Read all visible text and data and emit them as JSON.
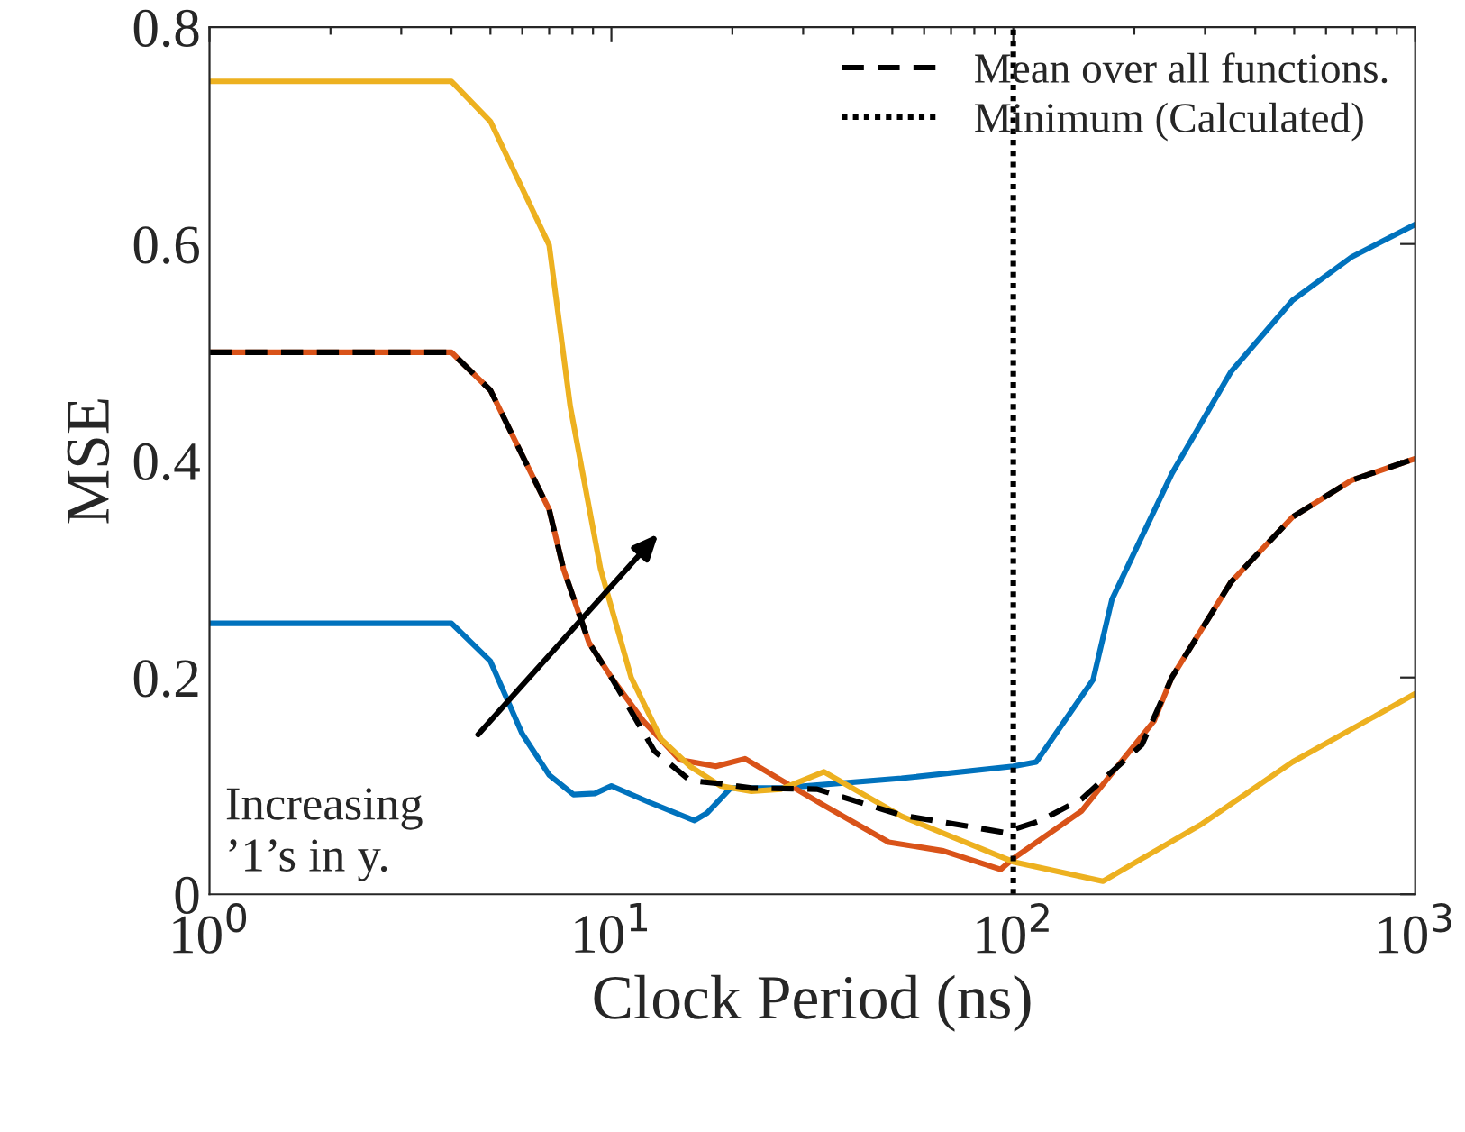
{
  "chart_data": {
    "type": "line",
    "xlabel": "Clock Period (ns)",
    "ylabel": "MSE",
    "log": "x",
    "xlim": [
      1,
      1000
    ],
    "xticks": [
      {
        "value": 1,
        "label": "10$^{0}$"
      },
      {
        "value": 10,
        "label": "10$^{1}$"
      },
      {
        "value": 100,
        "label": "10$^{2}$"
      },
      {
        "value": 1000,
        "label": "10$^{3}$"
      }
    ],
    "ylim": [
      0,
      0.8
    ],
    "yticks": [
      0,
      0.2,
      0.4,
      0.6,
      0.8
    ],
    "grid": false,
    "legend": "top right",
    "line_style": "solid",
    "marker": "none",
    "series": [
      {
        "color": "#0072bd",
        "x": [
          1,
          4,
          5,
          6,
          7,
          8.05,
          9.1,
          10,
          12.4,
          16.1,
          17.3,
          19.8,
          26.4,
          52.7,
          100,
          114,
          158,
          176,
          248,
          348,
          495,
          695,
          1000
        ],
        "values": [
          0.25,
          0.25,
          0.215,
          0.148,
          0.11,
          0.092,
          0.093,
          0.1,
          0.085,
          0.068,
          0.075,
          0.098,
          0.098,
          0.107,
          0.118,
          0.122,
          0.198,
          0.272,
          0.388,
          0.482,
          0.548,
          0.588,
          0.618
        ]
      },
      {
        "color": "#d95319",
        "x": [
          1,
          4,
          5,
          6,
          7,
          7.6,
          8.8,
          10,
          12,
          14.8,
          18.2,
          21.5,
          33.8,
          49,
          67,
          93,
          100,
          148,
          224,
          248,
          348,
          495,
          695,
          1000
        ],
        "values": [
          0.5,
          0.5,
          0.465,
          0.405,
          0.355,
          0.3,
          0.232,
          0.2,
          0.16,
          0.124,
          0.118,
          0.125,
          0.082,
          0.048,
          0.04,
          0.023,
          0.033,
          0.077,
          0.16,
          0.2,
          0.288,
          0.348,
          0.382,
          0.402
        ]
      },
      {
        "color": "#edb120",
        "x": [
          1,
          4,
          5,
          7,
          7.9,
          9.4,
          11.2,
          13.3,
          15.7,
          18.7,
          22.3,
          26.4,
          33.8,
          52.7,
          100,
          167,
          295,
          495,
          1000
        ],
        "values": [
          0.75,
          0.75,
          0.713,
          0.599,
          0.45,
          0.3,
          0.2,
          0.143,
          0.118,
          0.1,
          0.095,
          0.097,
          0.113,
          0.072,
          0.03,
          0.012,
          0.065,
          0.122,
          0.185
        ]
      },
      {
        "name": "Mean over all functions.",
        "color": "#000000",
        "line_style": "dashed",
        "x": [
          1,
          4,
          5,
          6,
          7,
          7.6,
          8.8,
          10,
          12.8,
          15.7,
          18.7,
          22.3,
          32.5,
          52.7,
          95,
          117,
          148,
          209,
          248,
          348,
          495,
          695,
          1000
        ],
        "values": [
          0.5,
          0.5,
          0.465,
          0.405,
          0.355,
          0.3,
          0.232,
          0.2,
          0.132,
          0.105,
          0.102,
          0.098,
          0.097,
          0.073,
          0.057,
          0.068,
          0.088,
          0.138,
          0.2,
          0.288,
          0.348,
          0.382,
          0.402
        ]
      }
    ],
    "ref_lines": [
      {
        "axis": "x",
        "value": 100,
        "label": "Minimum (Calculated)",
        "color": "#000000",
        "line_style": "dotted"
      }
    ],
    "annotations": [
      "Increasing\n’1’s in y."
    ]
  }
}
